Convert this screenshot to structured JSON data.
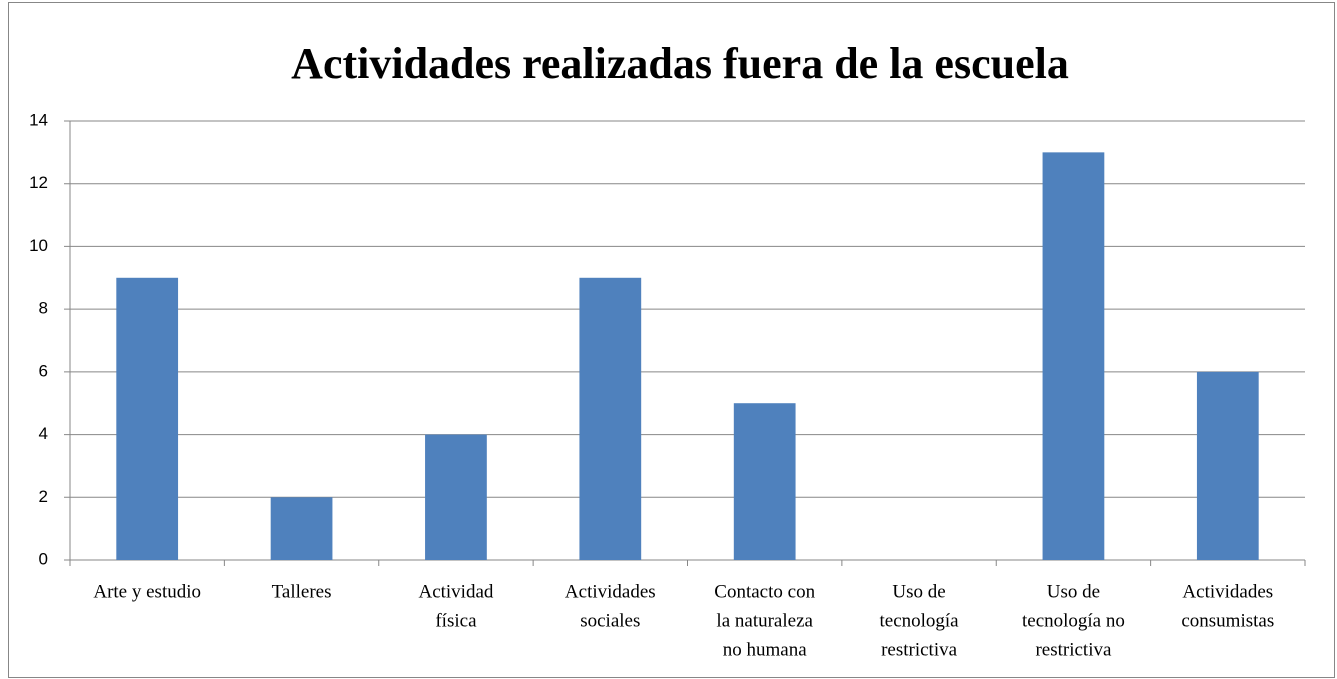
{
  "chart_data": {
    "type": "bar",
    "title": "Actividades realizadas fuera de la escuela",
    "categories": [
      [
        "Arte y estudio"
      ],
      [
        "Talleres"
      ],
      [
        "Actividad",
        "física"
      ],
      [
        "Actividades",
        "sociales"
      ],
      [
        "Contacto con",
        "la naturaleza",
        "no humana"
      ],
      [
        "Uso de",
        "tecnología",
        "restrictiva"
      ],
      [
        "Uso de",
        "tecnología no",
        "restrictiva"
      ],
      [
        "Actividades",
        "consumistas"
      ]
    ],
    "values": [
      9,
      2,
      4,
      9,
      5,
      0,
      13,
      6
    ],
    "color": "#4f81bd",
    "ylim": [
      0,
      14
    ],
    "yticks": [
      0,
      2,
      4,
      6,
      8,
      10,
      12,
      14
    ],
    "grid": true
  }
}
